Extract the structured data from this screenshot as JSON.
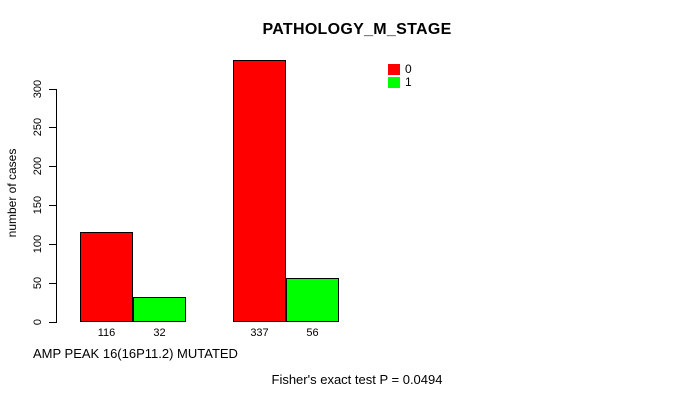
{
  "chart_data": {
    "type": "bar",
    "title": "PATHOLOGY_M_STAGE",
    "ylabel": "number of cases",
    "xlabel": "AMP PEAK 16(16P11.2) MUTATED",
    "annotation": "Fisher's exact test P = 0.0494",
    "yticks": [
      0,
      50,
      100,
      150,
      200,
      250,
      300
    ],
    "ylim": [
      0,
      340
    ],
    "grid": false,
    "legend_position": "top-right-inside",
    "series": [
      {
        "name": "0",
        "color": "#ff0000",
        "values": [
          116,
          337
        ]
      },
      {
        "name": "1",
        "color": "#00ff00",
        "values": [
          32,
          56
        ]
      }
    ],
    "bar_value_labels": [
      "116",
      "32",
      "337",
      "56"
    ]
  }
}
